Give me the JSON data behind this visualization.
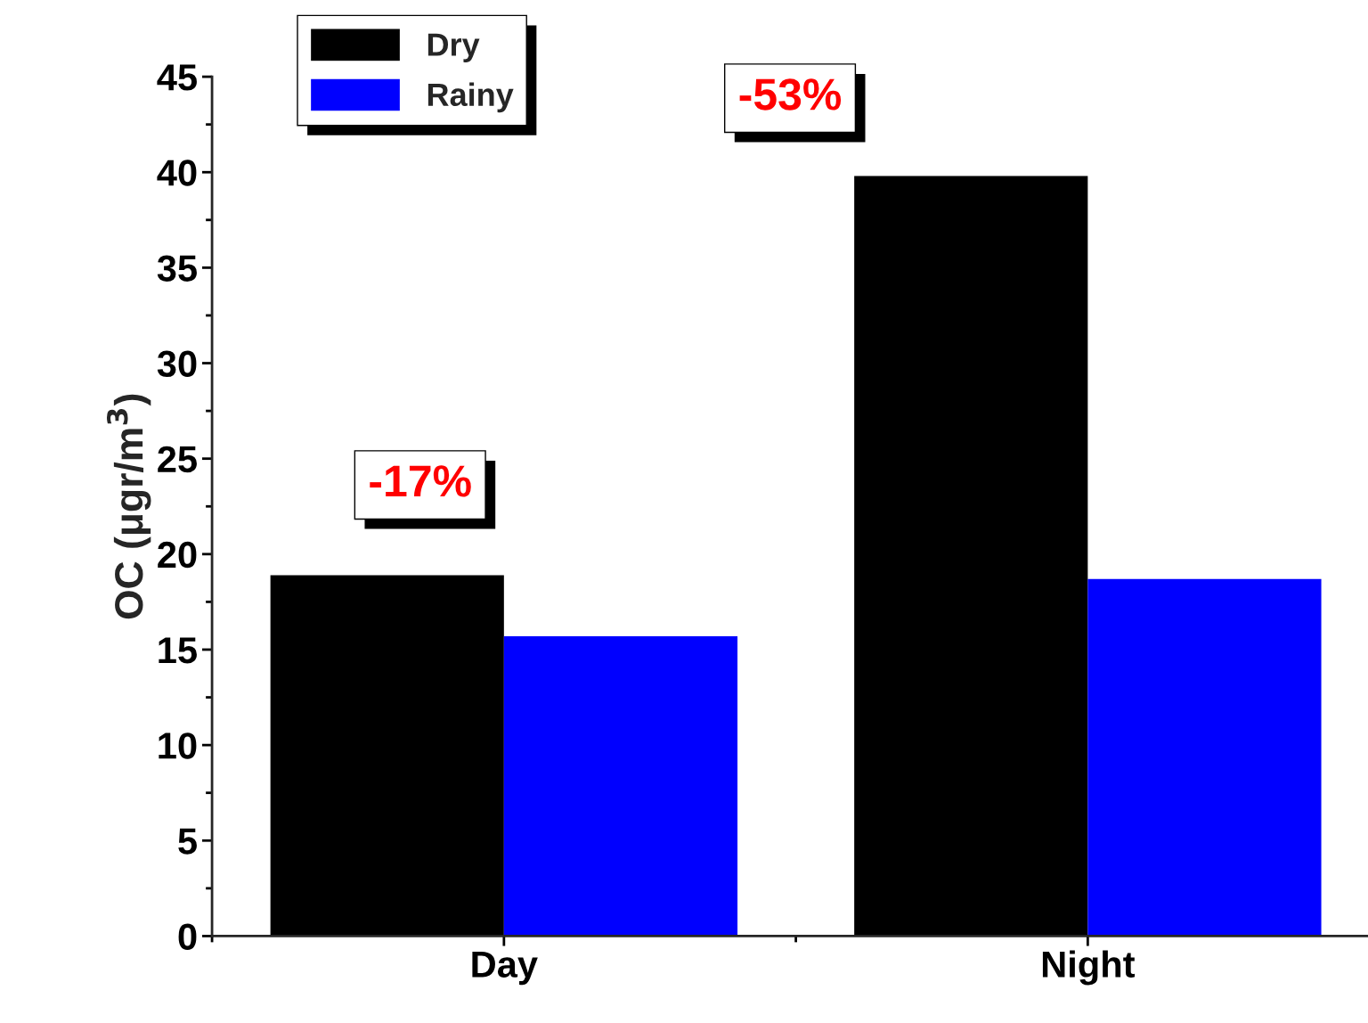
{
  "chart_data": {
    "type": "bar",
    "ylabel": "OC (μgr/m$^{3}$)",
    "categories": [
      "Day",
      "Night"
    ],
    "series": [
      {
        "name": "Dry",
        "color": "#000000",
        "values": [
          18.9,
          39.8
        ]
      },
      {
        "name": "Rainy",
        "color": "#0000ff",
        "values": [
          15.7,
          18.7
        ]
      }
    ],
    "ylim": [
      0,
      45
    ],
    "yticks": [
      0,
      5,
      10,
      15,
      20,
      25,
      30,
      35,
      40,
      45
    ],
    "grid": false,
    "legend": "top left",
    "annotations": [
      "-17%",
      "-53%"
    ]
  }
}
